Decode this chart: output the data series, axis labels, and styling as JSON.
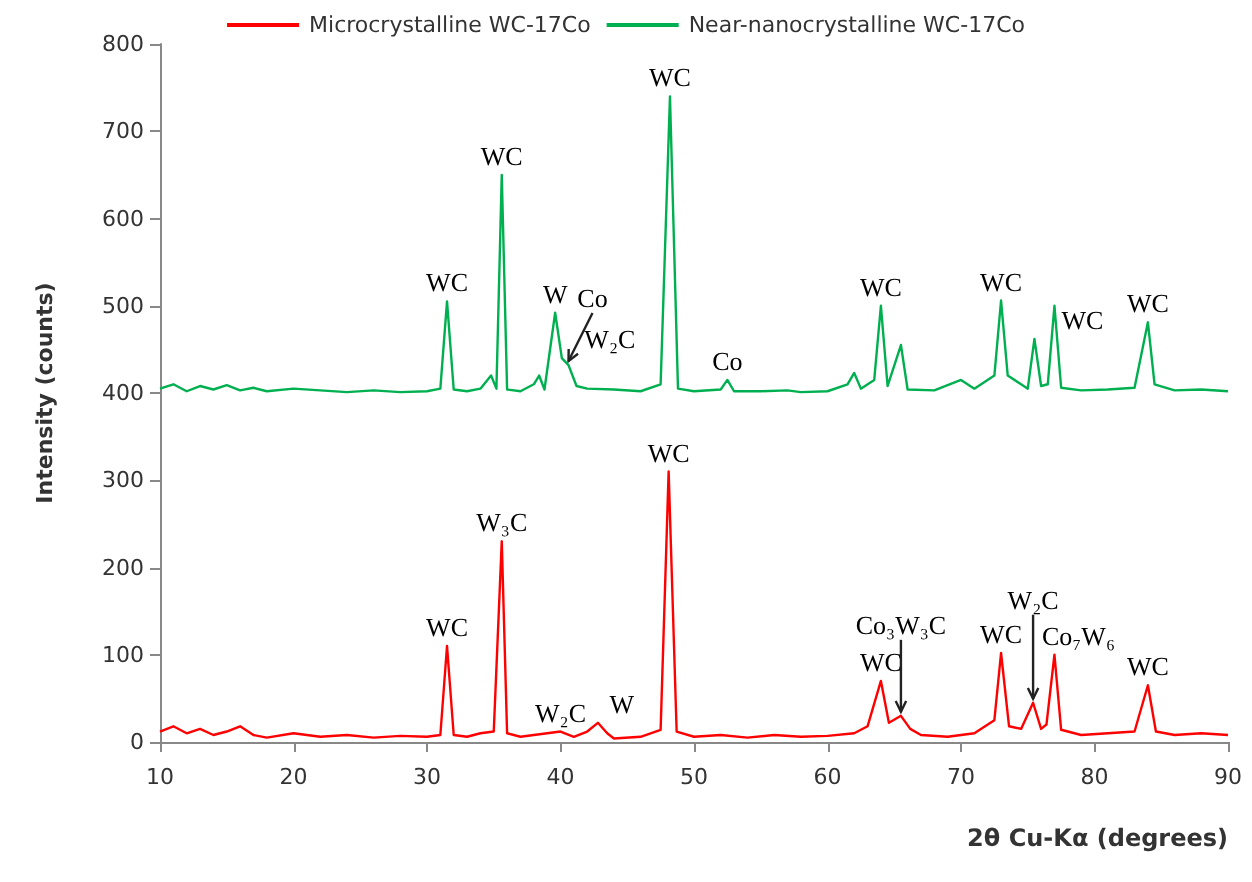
{
  "chart_data": {
    "type": "line",
    "xlabel": "2θ Cu-Kα (degrees)",
    "ylabel": "Intensity (counts)",
    "xlim": [
      10,
      90
    ],
    "xticks": [
      10,
      20,
      30,
      40,
      50,
      60,
      70,
      80,
      90
    ],
    "ylim": [
      0,
      800
    ],
    "yticks": [
      0,
      100,
      200,
      300,
      400,
      500,
      600,
      700,
      800
    ],
    "grid": false,
    "legend": "top",
    "marker": "none",
    "line_style": "solid",
    "series": [
      {
        "name": "Microcrystalline WC-17Co",
        "color": "#ff0000",
        "x": [
          10,
          11,
          12,
          13,
          14,
          15,
          16,
          17,
          18,
          20,
          22,
          24,
          26,
          28,
          30,
          31,
          31.5,
          32,
          33,
          34,
          35,
          35.6,
          36,
          37,
          38,
          40,
          41,
          42,
          42.8,
          43.5,
          44,
          46,
          47.5,
          48.1,
          48.7,
          50,
          52,
          54,
          56,
          58,
          60,
          62,
          63,
          64,
          64.6,
          65.5,
          66.2,
          67,
          69,
          71,
          72.5,
          73,
          73.6,
          74.5,
          75.4,
          76,
          76.4,
          77,
          77.5,
          79,
          81,
          83,
          84,
          84.6,
          86,
          88,
          90
        ],
        "values": [
          12,
          18,
          10,
          15,
          8,
          12,
          18,
          8,
          5,
          10,
          6,
          8,
          5,
          7,
          6,
          8,
          110,
          8,
          6,
          10,
          12,
          230,
          10,
          6,
          8,
          12,
          6,
          12,
          22,
          10,
          4,
          6,
          14,
          310,
          12,
          6,
          8,
          5,
          8,
          6,
          7,
          10,
          18,
          70,
          22,
          30,
          15,
          8,
          6,
          10,
          25,
          102,
          18,
          15,
          45,
          15,
          20,
          100,
          14,
          8,
          10,
          12,
          65,
          12,
          8,
          10,
          8
        ]
      },
      {
        "name": "Near-nanocrystalline WC-17Co",
        "color": "#00b050",
        "x": [
          10,
          11,
          12,
          13,
          14,
          15,
          16,
          17,
          18,
          20,
          22,
          24,
          26,
          28,
          30,
          31,
          31.5,
          32,
          33,
          34,
          34.8,
          35.2,
          35.6,
          36,
          37,
          38,
          38.4,
          38.8,
          39.6,
          40.1,
          40.6,
          41.2,
          42,
          44,
          46,
          47.5,
          48.2,
          48.8,
          50,
          52,
          52.5,
          53,
          55,
          57,
          58,
          60,
          61.5,
          62,
          62.5,
          63.5,
          64,
          64.5,
          65.5,
          66,
          68,
          70,
          71,
          72.5,
          73,
          73.5,
          74.5,
          75,
          75.5,
          76,
          76.5,
          77,
          77.5,
          79,
          81,
          83,
          84,
          84.5,
          86,
          88,
          90
        ],
        "values": [
          405,
          410,
          402,
          408,
          404,
          409,
          403,
          406,
          402,
          405,
          403,
          401,
          403,
          401,
          402,
          405,
          505,
          404,
          402,
          405,
          420,
          405,
          650,
          404,
          402,
          410,
          420,
          404,
          492,
          440,
          432,
          408,
          405,
          404,
          402,
          410,
          740,
          405,
          402,
          404,
          415,
          402,
          402,
          403,
          401,
          402,
          410,
          423,
          405,
          415,
          500,
          408,
          455,
          404,
          403,
          415,
          405,
          420,
          506,
          420,
          410,
          405,
          462,
          408,
          410,
          500,
          406,
          403,
          404,
          406,
          481,
          410,
          403,
          404,
          402
        ]
      }
    ],
    "annotations": [
      {
        "text": "WC",
        "x": 31.5,
        "y": 505
      },
      {
        "text": "WC",
        "x": 35.6,
        "y": 650
      },
      {
        "text": "W",
        "x": 39.6,
        "y": 492
      },
      {
        "text": "W₂C",
        "x": 40.1,
        "y": 440
      },
      {
        "text": "Co",
        "x": 40.6,
        "y": 432
      },
      {
        "text": "WC",
        "x": 48.2,
        "y": 740
      },
      {
        "text": "Co",
        "x": 52.5,
        "y": 415
      },
      {
        "text": "WC",
        "x": 64,
        "y": 500
      },
      {
        "text": "WC",
        "x": 73,
        "y": 506
      },
      {
        "text": "WC",
        "x": 75.5,
        "y": 462
      },
      {
        "text": "WC",
        "x": 84,
        "y": 481
      },
      {
        "text": "WC",
        "x": 31.5,
        "y": 110
      },
      {
        "text": "W₃C",
        "x": 35.6,
        "y": 230
      },
      {
        "text": "W₂C",
        "x": 40,
        "y": 12
      },
      {
        "text": "W",
        "x": 42.8,
        "y": 22
      },
      {
        "text": "WC",
        "x": 48.1,
        "y": 310
      },
      {
        "text": "WC",
        "x": 64,
        "y": 70
      },
      {
        "text": "WC",
        "x": 73,
        "y": 102
      },
      {
        "text": "Co₇W₆",
        "x": 77,
        "y": 100
      },
      {
        "text": "WC",
        "x": 84,
        "y": 65
      },
      {
        "text": "Co₃W₃C",
        "x": 65.5,
        "y": 30
      },
      {
        "text": "W₂C",
        "x": 75.4,
        "y": 45
      }
    ]
  }
}
